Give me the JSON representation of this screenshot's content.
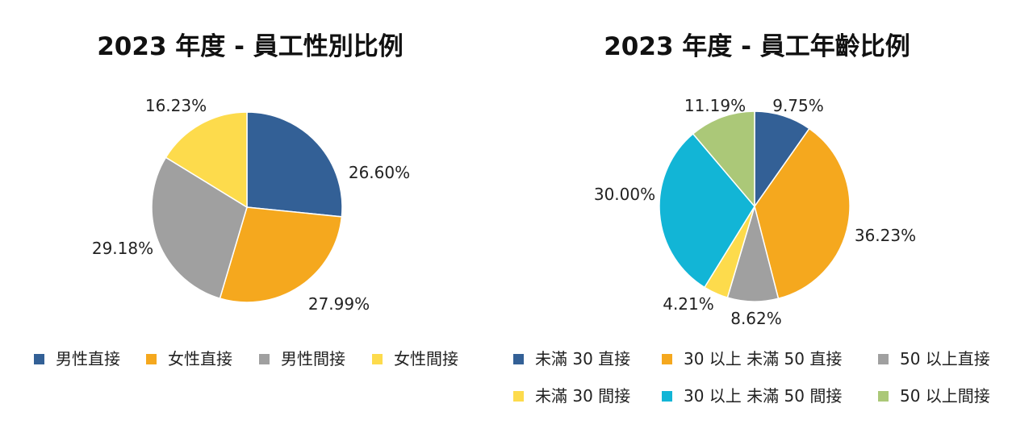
{
  "chart_data": [
    {
      "type": "pie",
      "title": "2023 年度 - 員工性別比例",
      "categories": [
        "男性直接",
        "女性直接",
        "男性間接",
        "女性間接"
      ],
      "values": [
        26.6,
        27.99,
        29.18,
        16.23
      ],
      "labels": [
        "26.60%",
        "27.99%",
        "29.18%",
        "16.23%"
      ],
      "colors": [
        "#336096",
        "#F5A81E",
        "#A0A0A0",
        "#FDDB4C"
      ],
      "legend": "bottom"
    },
    {
      "type": "pie",
      "title": "2023 年度 - 員工年齡比例",
      "categories": [
        "未滿 30 直接",
        "30 以上 未滿 50 直接",
        "50 以上直接",
        "未滿 30 間接",
        "30 以上 未滿 50 間接",
        "50 以上間接"
      ],
      "values": [
        9.75,
        36.23,
        8.62,
        4.21,
        30.0,
        11.19
      ],
      "labels": [
        "9.75%",
        "36.23%",
        "8.62%",
        "4.21%",
        "30.00%",
        "11.19%"
      ],
      "colors": [
        "#336096",
        "#F5A81E",
        "#A0A0A0",
        "#FDDB4C",
        "#12B5D6",
        "#ABC878"
      ],
      "legend": "bottom"
    }
  ]
}
